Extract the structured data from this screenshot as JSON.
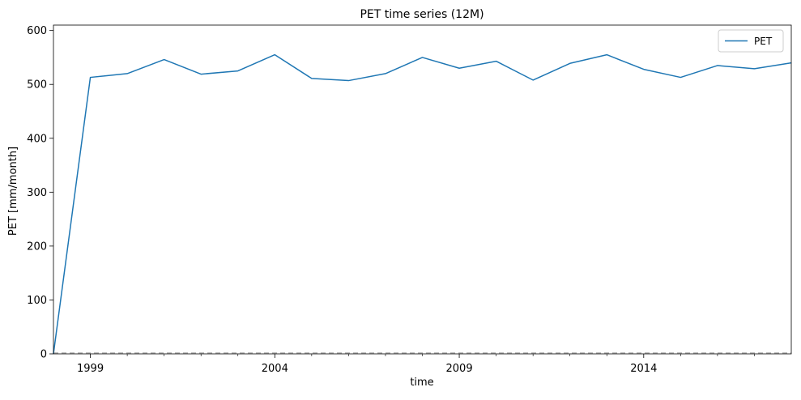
{
  "chart_data": {
    "type": "line",
    "title": "PET time series (12M)",
    "xlabel": "time",
    "ylabel": "PET [mm/month]",
    "xlim": [
      1998,
      2018
    ],
    "ylim": [
      0,
      610
    ],
    "x_ticks": [
      1999,
      2004,
      2009,
      2014
    ],
    "x_minor_ticks": [
      2000,
      2001,
      2002,
      2003,
      2005,
      2006,
      2007,
      2008,
      2010,
      2011,
      2012,
      2013,
      2015,
      2016,
      2017
    ],
    "y_ticks": [
      0,
      100,
      200,
      300,
      400,
      500,
      600
    ],
    "grid": false,
    "legend_position": "top-right",
    "reference_line": {
      "y": 0,
      "style": "dashed",
      "color": "#aaaaaa"
    },
    "series": [
      {
        "name": "PET",
        "color": "#1f77b4",
        "x": [
          1998,
          1999,
          2000,
          2001,
          2002,
          2003,
          2004,
          2005,
          2006,
          2007,
          2008,
          2009,
          2010,
          2011,
          2012,
          2013,
          2014,
          2015,
          2016,
          2017,
          2018
        ],
        "y": [
          0,
          513,
          520,
          546,
          519,
          525,
          555,
          511,
          507,
          520,
          550,
          530,
          543,
          508,
          539,
          555,
          528,
          513,
          535,
          529,
          540
        ]
      }
    ]
  }
}
